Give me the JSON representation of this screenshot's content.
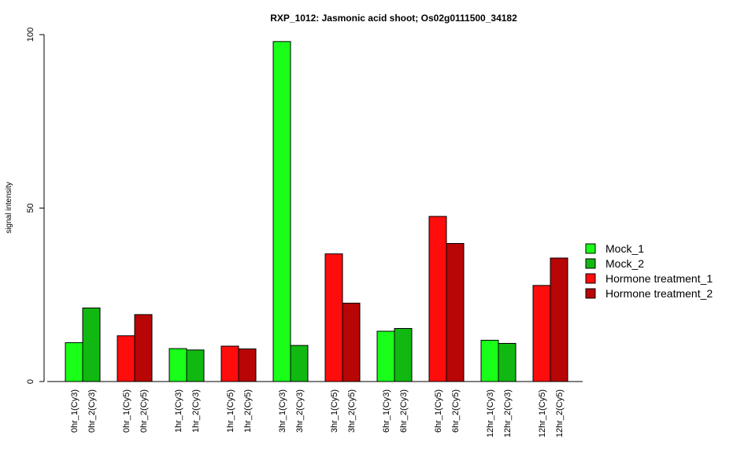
{
  "chart_data": {
    "type": "bar",
    "title": "RXP_1012: Jasmonic acid shoot; Os02g0111500_34182",
    "ylabel": "signal intensity",
    "xlabel": "",
    "ylim": [
      0,
      100
    ],
    "yticks": [
      0,
      50,
      100
    ],
    "categories": [
      "0hr_1(Cy3)",
      "0hr_2(Cy3)",
      "0hr_1(Cy5)",
      "0hr_2(Cy5)",
      "1hr_1(Cy3)",
      "1hr_2(Cy3)",
      "1hr_1(Cy5)",
      "1hr_2(Cy5)",
      "3hr_1(Cy3)",
      "3hr_2(Cy3)",
      "3hr_1(Cy5)",
      "3hr_2(Cy5)",
      "6hr_1(Cy3)",
      "6hr_2(Cy3)",
      "6hr_1(Cy5)",
      "6hr_2(Cy5)",
      "12hr_1(Cy3)",
      "12hr_2(Cy3)",
      "12hr_1(Cy5)",
      "12hr_2(Cy5)"
    ],
    "values": [
      11.2,
      21.2,
      13.2,
      19.3,
      9.5,
      9.1,
      10.2,
      9.4,
      98.0,
      10.4,
      36.8,
      22.6,
      14.5,
      15.3,
      47.6,
      39.8,
      11.9,
      11.0,
      27.7,
      35.6
    ],
    "series_index": [
      0,
      1,
      2,
      3,
      0,
      1,
      2,
      3,
      0,
      1,
      2,
      3,
      0,
      1,
      2,
      3,
      0,
      1,
      2,
      3
    ],
    "legend": [
      {
        "name": "Mock_1",
        "color": "#19FF19"
      },
      {
        "name": "Mock_2",
        "color": "#12B812"
      },
      {
        "name": "Hormone treatment_1",
        "color": "#FF0D0D"
      },
      {
        "name": "Hormone treatment_2",
        "color": "#B80505"
      }
    ],
    "legend_position": "right",
    "grid": false
  }
}
